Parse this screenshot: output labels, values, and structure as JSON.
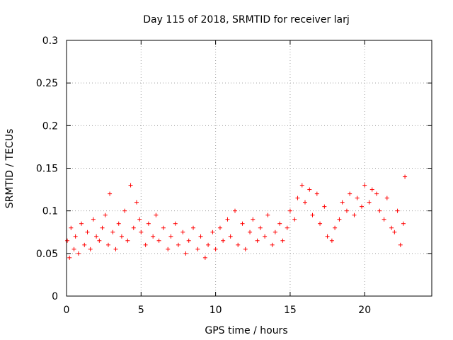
{
  "chart_data": {
    "type": "scatter",
    "title": "Day 115 of 2018, SRMTID for receiver larj",
    "xlabel": "GPS time / hours",
    "ylabel": "SRMTID / TECUs",
    "xlim": [
      0,
      24.5
    ],
    "ylim": [
      0,
      0.3
    ],
    "xticks": [
      0,
      5,
      10,
      15,
      20
    ],
    "xtick_labels": [
      "0",
      "5",
      "10",
      "15",
      "20"
    ],
    "yticks": [
      0,
      0.05,
      0.1,
      0.15,
      0.2,
      0.25,
      0.3
    ],
    "ytick_labels": [
      "0",
      "0.05",
      "0.1",
      "0.15",
      "0.2",
      "0.25",
      "0.3"
    ],
    "grid": true,
    "series": [
      {
        "name": "SRMTID",
        "color": "#ff0000",
        "marker": "plus",
        "x": [
          0.05,
          0.2,
          0.3,
          0.5,
          0.6,
          0.8,
          1.0,
          1.2,
          1.4,
          1.6,
          1.8,
          2.0,
          2.2,
          2.4,
          2.6,
          2.8,
          2.9,
          3.1,
          3.3,
          3.5,
          3.7,
          3.9,
          4.1,
          4.3,
          4.5,
          4.7,
          4.9,
          5.0,
          5.3,
          5.5,
          5.8,
          6.0,
          6.2,
          6.5,
          6.8,
          7.0,
          7.3,
          7.5,
          7.8,
          8.0,
          8.2,
          8.5,
          8.8,
          9.0,
          9.3,
          9.5,
          9.8,
          10.0,
          10.3,
          10.5,
          10.8,
          11.0,
          11.3,
          11.5,
          11.8,
          12.0,
          12.3,
          12.5,
          12.8,
          13.0,
          13.3,
          13.5,
          13.8,
          14.0,
          14.3,
          14.5,
          14.8,
          15.0,
          15.3,
          15.5,
          15.8,
          16.0,
          16.3,
          16.5,
          16.8,
          17.0,
          17.3,
          17.5,
          17.8,
          18.0,
          18.3,
          18.5,
          18.8,
          19.0,
          19.3,
          19.5,
          19.8,
          20.0,
          20.3,
          20.5,
          20.8,
          21.0,
          21.3,
          21.5,
          21.8,
          22.0,
          22.2,
          22.4,
          22.6,
          22.7
        ],
        "y": [
          0.065,
          0.045,
          0.08,
          0.055,
          0.07,
          0.05,
          0.085,
          0.06,
          0.075,
          0.055,
          0.09,
          0.07,
          0.065,
          0.08,
          0.095,
          0.06,
          0.12,
          0.075,
          0.055,
          0.085,
          0.07,
          0.1,
          0.065,
          0.13,
          0.08,
          0.11,
          0.09,
          0.075,
          0.06,
          0.085,
          0.07,
          0.095,
          0.065,
          0.08,
          0.055,
          0.07,
          0.085,
          0.06,
          0.075,
          0.05,
          0.065,
          0.08,
          0.055,
          0.07,
          0.045,
          0.06,
          0.075,
          0.055,
          0.08,
          0.065,
          0.09,
          0.07,
          0.1,
          0.06,
          0.085,
          0.055,
          0.075,
          0.09,
          0.065,
          0.08,
          0.07,
          0.095,
          0.06,
          0.075,
          0.085,
          0.065,
          0.08,
          0.1,
          0.09,
          0.115,
          0.13,
          0.11,
          0.125,
          0.095,
          0.12,
          0.085,
          0.105,
          0.07,
          0.065,
          0.08,
          0.09,
          0.11,
          0.1,
          0.12,
          0.095,
          0.115,
          0.105,
          0.13,
          0.11,
          0.125,
          0.12,
          0.1,
          0.09,
          0.115,
          0.08,
          0.075,
          0.1,
          0.06,
          0.085,
          0.14
        ]
      }
    ]
  }
}
